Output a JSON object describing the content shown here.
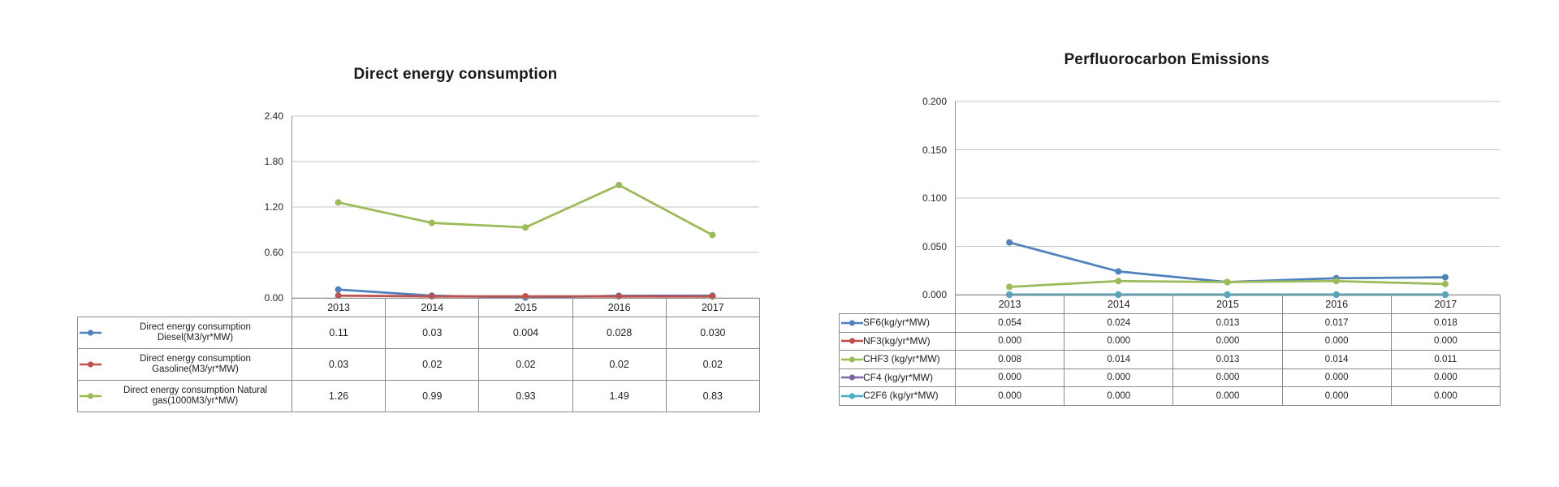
{
  "page": {
    "background_color": "#ffffff",
    "text_color": "#1f1f1f",
    "grid_color": "#c6c6c6",
    "axis_color": "#969696",
    "table_border_color": "#8a8a8a"
  },
  "chart_data": [
    {
      "type": "line",
      "title": "Direct energy consumption",
      "xlabel": "",
      "ylabel": "",
      "categories": [
        "2013",
        "2014",
        "2015",
        "2016",
        "2017"
      ],
      "ylim": [
        0,
        2.4
      ],
      "y_ticks_top_to_bottom": [
        "2.40",
        "1.80",
        "1.20",
        "0.60",
        "0.00"
      ],
      "grid": true,
      "marker": "circle",
      "legend_position": "data-table-left",
      "series": [
        {
          "name": "Direct energy consumption Diesel(M3/yr*MW)",
          "color": "#4F81BD",
          "values": [
            0.11,
            0.03,
            0.004,
            0.028,
            0.03
          ],
          "values_text": [
            "0.11",
            "0.03",
            "0.004",
            "0.028",
            "0.030"
          ]
        },
        {
          "name": "Direct energy consumption Gasoline(M3/yr*MW)",
          "color": "#C0504D",
          "values": [
            0.03,
            0.02,
            0.02,
            0.02,
            0.02
          ],
          "values_text": [
            "0.03",
            "0.02",
            "0.02",
            "0.02",
            "0.02"
          ]
        },
        {
          "name": "Direct energy consumption  Natural gas(1000M3/yr*MW)",
          "color": "#9BBB59",
          "values": [
            1.26,
            0.99,
            0.93,
            1.49,
            0.83
          ],
          "values_text": [
            "1.26",
            "0.99",
            "0.93",
            "1.49",
            "0.83"
          ]
        }
      ]
    },
    {
      "type": "line",
      "title": "Perfluorocarbon Emissions",
      "xlabel": "",
      "ylabel": "",
      "categories": [
        "2013",
        "2014",
        "2015",
        "2016",
        "2017"
      ],
      "ylim": [
        0,
        0.2
      ],
      "y_ticks_top_to_bottom": [
        "0.200",
        "0.150",
        "0.100",
        "0.050",
        "0.000"
      ],
      "grid": true,
      "marker": "circle",
      "legend_position": "data-table-left",
      "series": [
        {
          "name": "SF6(kg/yr*MW)",
          "color": "#4F81BD",
          "values": [
            0.054,
            0.024,
            0.013,
            0.017,
            0.018
          ],
          "values_text": [
            "0.054",
            "0.024",
            "0.013",
            "0.017",
            "0.018"
          ]
        },
        {
          "name": "NF3(kg/yr*MW)",
          "color": "#C0504D",
          "values": [
            0,
            0,
            0,
            0,
            0
          ],
          "values_text": [
            "0.000",
            "0.000",
            "0.000",
            "0.000",
            "0.000"
          ]
        },
        {
          "name": "CHF3 (kg/yr*MW)",
          "color": "#9BBB59",
          "values": [
            0.008,
            0.014,
            0.013,
            0.014,
            0.011
          ],
          "values_text": [
            "0.008",
            "0.014",
            "0.013",
            "0.014",
            "0.011"
          ]
        },
        {
          "name": "CF4 (kg/yr*MW)",
          "color": "#8064A2",
          "values": [
            0,
            0,
            0,
            0,
            0
          ],
          "values_text": [
            "0.000",
            "0.000",
            "0.000",
            "0.000",
            "0.000"
          ]
        },
        {
          "name": "C2F6 (kg/yr*MW)",
          "color": "#4BACC6",
          "values": [
            0,
            0,
            0,
            0,
            0
          ],
          "values_text": [
            "0.000",
            "0.000",
            "0.000",
            "0.000",
            "0.000"
          ]
        }
      ]
    }
  ]
}
